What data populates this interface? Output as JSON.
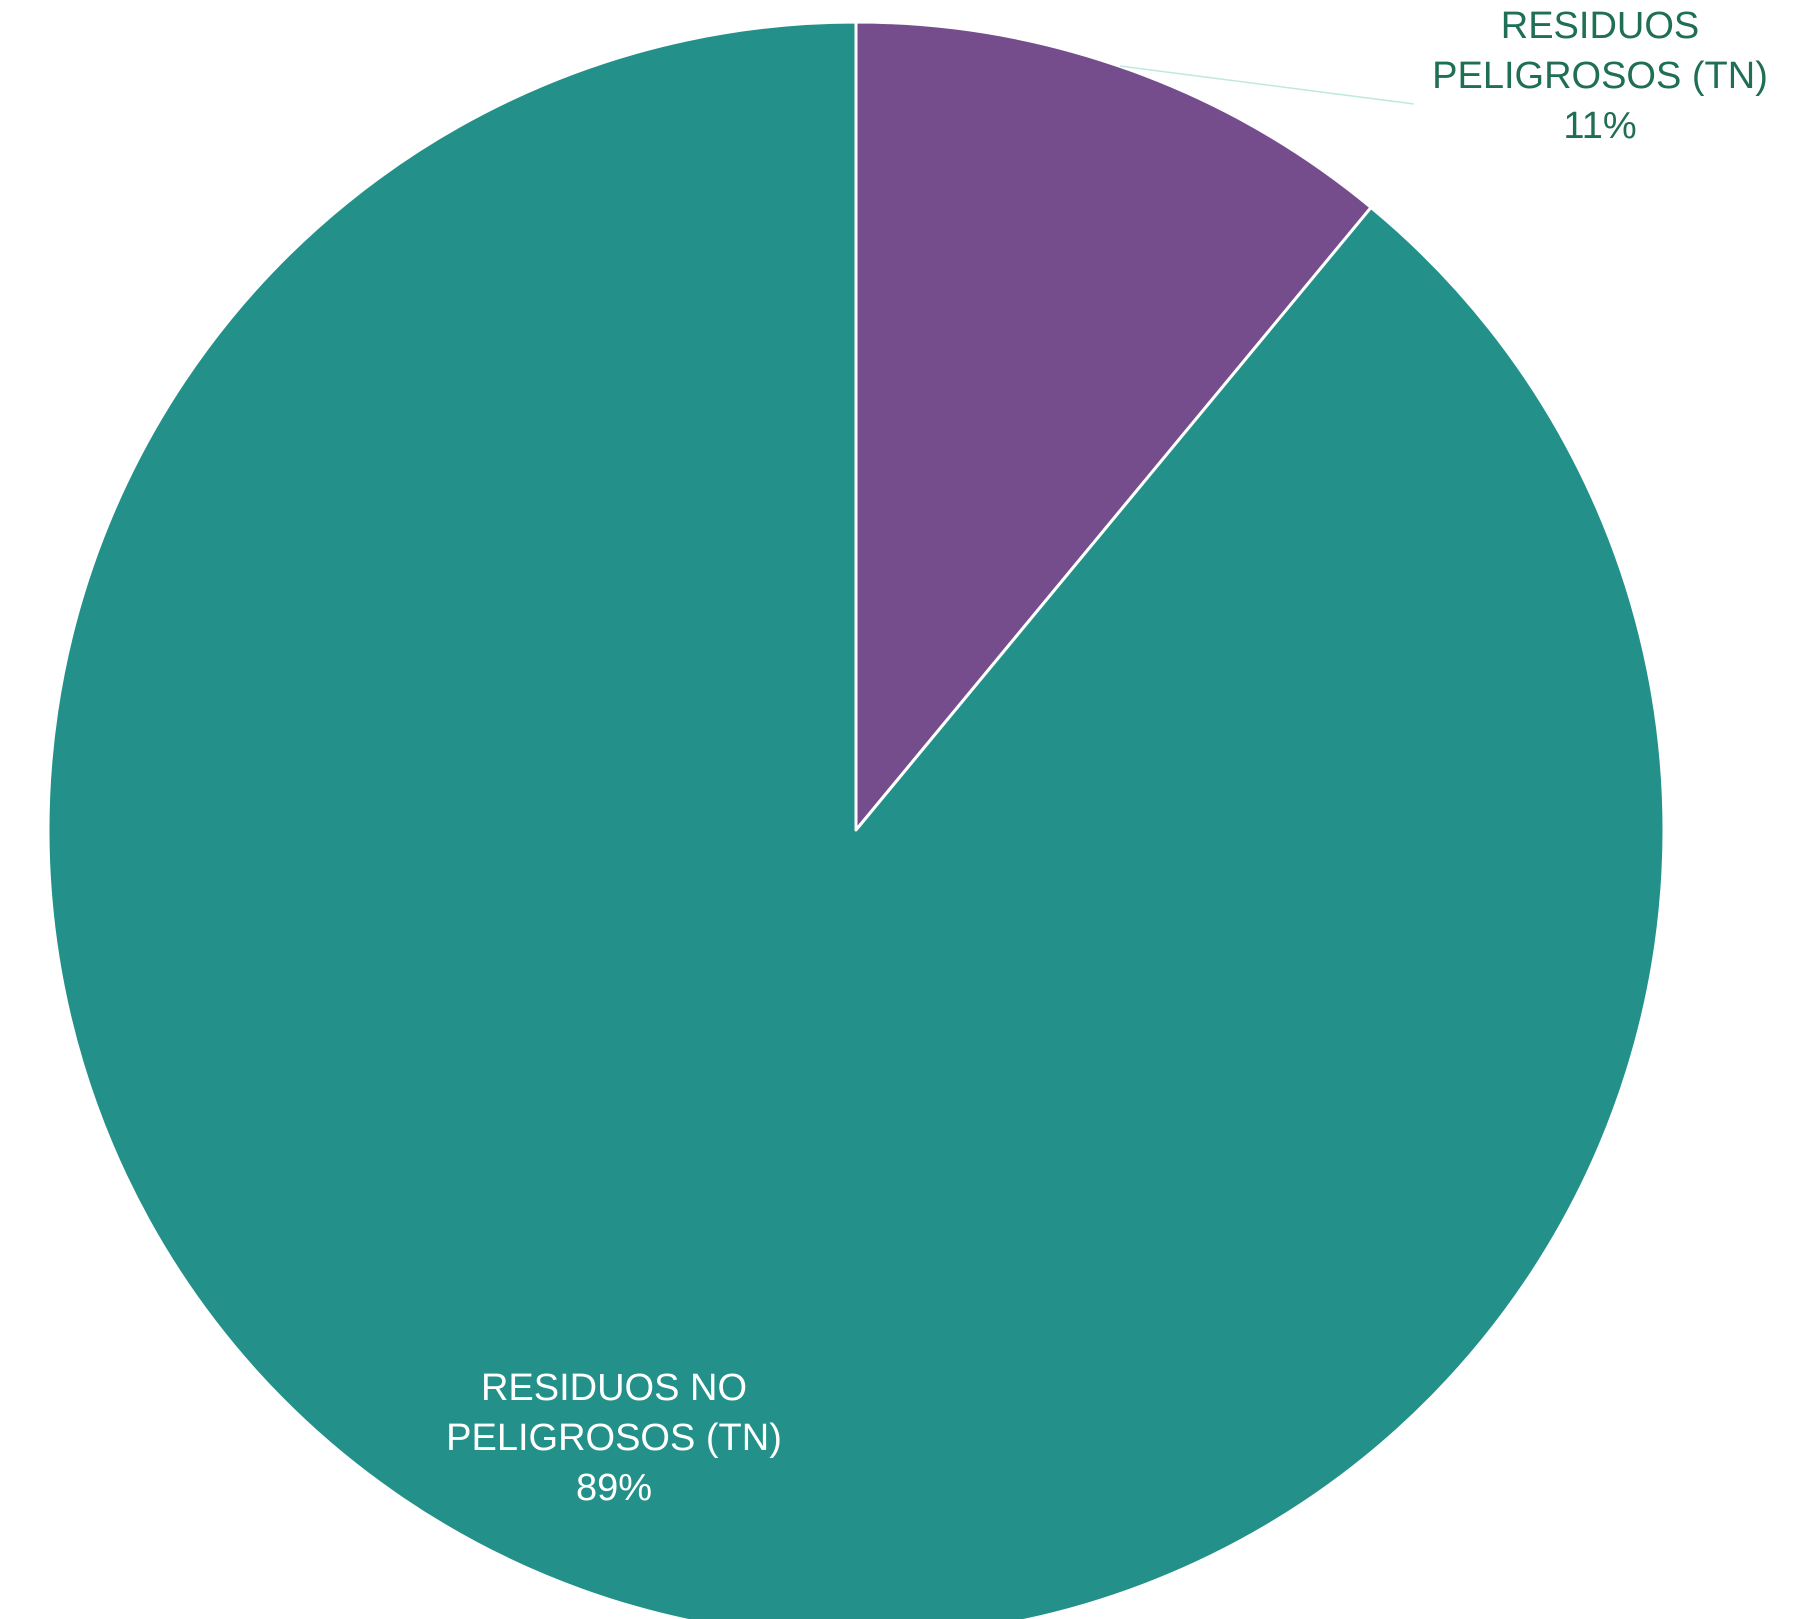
{
  "chart_data": {
    "type": "pie",
    "title": "",
    "start_angle_deg": 0,
    "direction": "clockwise",
    "slices": [
      {
        "label_lines": [
          "RESIDUOS",
          "PELIGROSOS (TN)"
        ],
        "value": 11,
        "percent_label": "11%",
        "color": "#754D8C",
        "label_color": "#1F6E56",
        "label_placement": "outside"
      },
      {
        "label_lines": [
          "RESIDUOS NO",
          "PELIGROSOS (TN)"
        ],
        "value": 89,
        "percent_label": "89%",
        "color": "#23918A",
        "label_color": "#FFFFFF",
        "label_placement": "inside"
      }
    ],
    "slice_border_color": "#FFFFFF",
    "leader_line_color": "#BFE8E0",
    "legend": "none"
  }
}
